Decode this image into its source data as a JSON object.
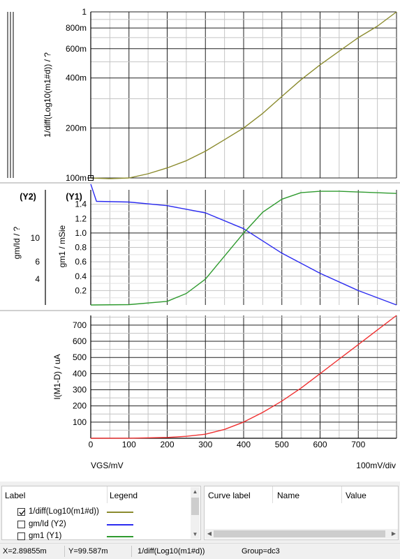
{
  "plot": {
    "top_ticks": [
      "1",
      "800m",
      "600m",
      "400m",
      "200m",
      "100m"
    ],
    "top_ylabel": "1/diff(Log10(m1#d)) / ?",
    "y2_header": "(Y2)",
    "y1_header": "(Y1)",
    "y2_label": "gm/Id / ?",
    "y2_ticks": [
      "10",
      "6",
      "4"
    ],
    "y1_label": "gm1 / mSie",
    "y1_ticks": [
      "1.4",
      "1.2",
      "1.0",
      "0.8",
      "0.6",
      "0.4",
      "0.2"
    ],
    "bottom_ylabel": "I(M1-D) / uA",
    "bottom_ticks": [
      "700",
      "600",
      "500",
      "400",
      "300",
      "200",
      "100"
    ],
    "x_ticks": [
      "0",
      "100",
      "200",
      "300",
      "400",
      "500",
      "600",
      "700"
    ],
    "x_axis_label": "VGS/mV",
    "x_scale_label": "100mV/div"
  },
  "chart_data": [
    {
      "type": "line",
      "xlabel": "VGS/mV",
      "ylabel": "1/diff(Log10(m1#d)) / ?",
      "y_scale": "log",
      "ylim": [
        0.1,
        1
      ],
      "series": [
        {
          "name": "1/diff(Log10(m1#d))",
          "color": "#8b8b2e",
          "x": [
            0,
            50,
            100,
            150,
            200,
            250,
            300,
            350,
            400,
            450,
            500,
            550,
            600,
            650,
            700,
            750,
            800
          ],
          "y": [
            0.1,
            0.099,
            0.1,
            0.106,
            0.115,
            0.127,
            0.145,
            0.17,
            0.2,
            0.245,
            0.31,
            0.39,
            0.48,
            0.58,
            0.7,
            0.82,
            1.0
          ]
        }
      ]
    },
    {
      "type": "line",
      "xlabel": "VGS/mV",
      "ylabel": "gm1 / mSie",
      "y2label": "gm/Id / ?",
      "ylim": [
        0,
        1.6
      ],
      "series": [
        {
          "name": "gm/Id (Y2)",
          "color": "#2b2bf0",
          "x": [
            0,
            15,
            100,
            200,
            300,
            400,
            500,
            600,
            700,
            800
          ],
          "y": [
            1.68,
            1.44,
            1.43,
            1.38,
            1.28,
            1.06,
            0.72,
            0.44,
            0.2,
            0.0
          ]
        },
        {
          "name": "gm1 (Y1)",
          "color": "#2e9a2e",
          "x": [
            0,
            100,
            200,
            250,
            300,
            350,
            400,
            450,
            500,
            550,
            600,
            650,
            700,
            800
          ],
          "y": [
            0.0,
            0.005,
            0.05,
            0.16,
            0.36,
            0.68,
            1.0,
            1.29,
            1.47,
            1.56,
            1.58,
            1.58,
            1.57,
            1.55
          ]
        }
      ]
    },
    {
      "type": "line",
      "xlabel": "VGS/mV",
      "ylabel": "I(M1-D) / uA",
      "ylim": [
        0,
        760
      ],
      "series": [
        {
          "name": "I(M1-D)",
          "color": "#f03030",
          "x": [
            0,
            100,
            200,
            250,
            300,
            350,
            400,
            450,
            500,
            550,
            600,
            650,
            700,
            750,
            800
          ],
          "y": [
            0,
            0.5,
            5,
            12,
            25,
            55,
            100,
            160,
            230,
            310,
            400,
            490,
            580,
            670,
            760
          ]
        }
      ]
    }
  ],
  "legend": {
    "header_label": "Label",
    "header_legend": "Legend",
    "items": [
      {
        "label": "1/diff(Log10(m1#d))",
        "checked": true,
        "color": "#8b8b2e"
      },
      {
        "label": "gm/Id (Y2)",
        "checked": false,
        "color": "#2b2bf0"
      },
      {
        "label": "gm1 (Y1)",
        "checked": false,
        "color": "#2e9a2e"
      }
    ]
  },
  "cursor_table": {
    "headers": [
      "Curve label",
      "Name",
      "Value"
    ]
  },
  "status": {
    "x": "X=2.89855m",
    "y": "Y=99.587m",
    "curve": "1/diff(Log10(m1#d))",
    "group": "Group=dc3"
  }
}
